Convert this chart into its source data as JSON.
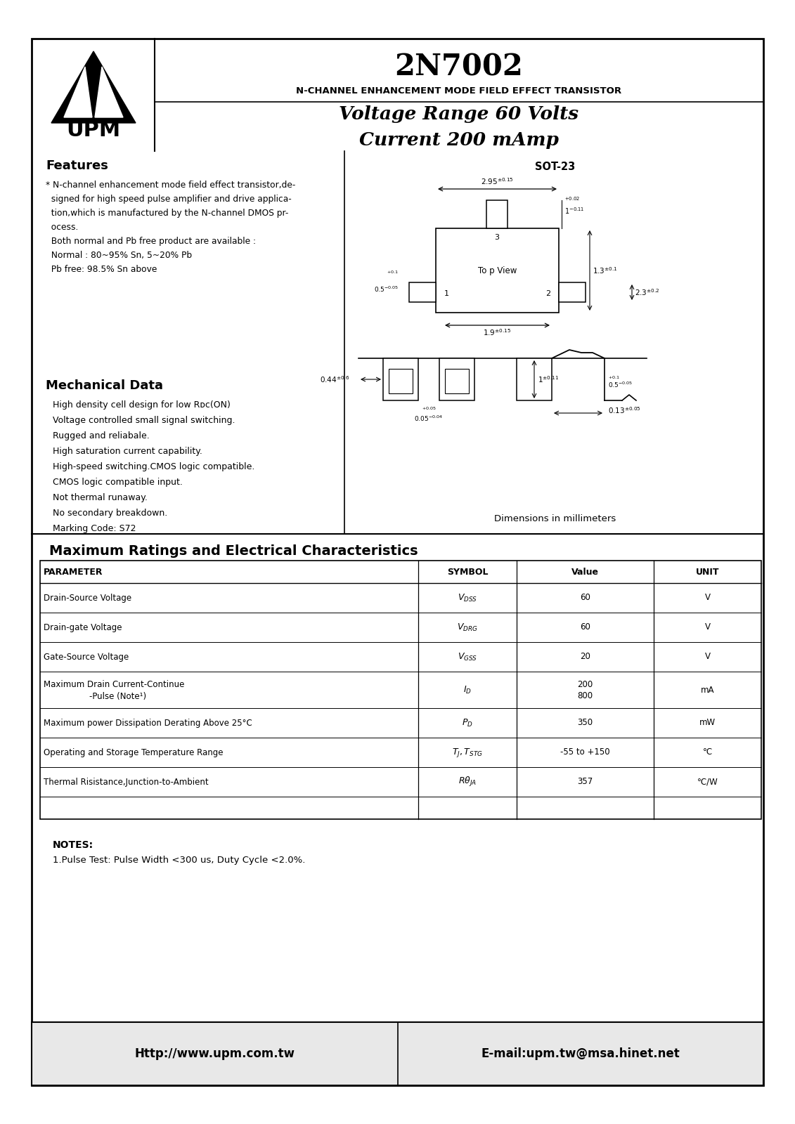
{
  "title": "2N7002",
  "subtitle": "N-CHANNEL ENHANCEMENT MODE FIELD EFFECT TRANSISTOR",
  "voltage_line": "Voltage Range 60 Volts",
  "current_line": "Current 200 mAmp",
  "website": "Http://www.upm.com.tw",
  "email": "E-mail:upm.tw@msa.hinet.net",
  "features_title": "Features",
  "mech_title": "Mechanical Data",
  "package": "SOT-23",
  "dim_label": "Dimensions in millimeters",
  "notes_title": "NOTES:",
  "notes_text": "1.Pulse Test: Pulse Width <300 us, Duty Cycle <2.0%."
}
